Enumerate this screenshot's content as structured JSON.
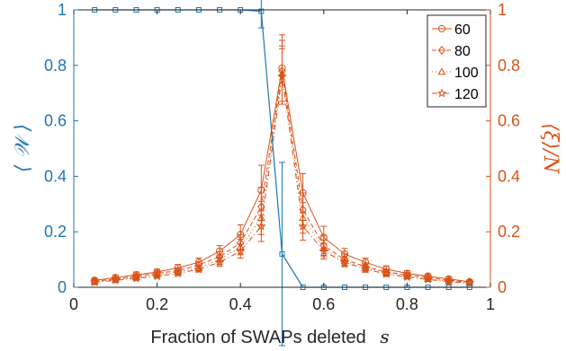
{
  "chart_data": {
    "type": "line",
    "xlabel": "Fraction of SWAPs deleted",
    "xlabel_symbol": "s",
    "ylabel_left": "⟨ 𝒲 ⟩",
    "ylabel_right": "⟨ξ⟩/N",
    "xlim": [
      0,
      1
    ],
    "ylim_left": [
      0,
      1
    ],
    "ylim_right": [
      0,
      1
    ],
    "xticks": [
      "0",
      "0.2",
      "0.4",
      "0.6",
      "0.8",
      "1"
    ],
    "yticks_left": [
      "0",
      "0.2",
      "0.4",
      "0.6",
      "0.8",
      "1"
    ],
    "yticks_right": [
      "0",
      "0.2",
      "0.4",
      "0.6",
      "0.8",
      "1"
    ],
    "legend_position": "top-right",
    "colors": {
      "left": "#1f77b4",
      "right": "#d95319"
    },
    "left_series": {
      "x": [
        0.05,
        0.1,
        0.15,
        0.2,
        0.25,
        0.3,
        0.35,
        0.4,
        0.45,
        0.5,
        0.55,
        0.6,
        0.65,
        0.7,
        0.75,
        0.8,
        0.85,
        0.9,
        0.95
      ],
      "y": [
        1,
        1,
        1,
        1,
        1,
        1,
        1,
        1,
        0.995,
        0.12,
        0,
        0,
        0,
        0,
        0,
        0,
        0,
        0,
        0
      ],
      "err": [
        0,
        0,
        0,
        0,
        0,
        0,
        0,
        0,
        0.06,
        0.33,
        0,
        0,
        0,
        0,
        0,
        0,
        0,
        0,
        0
      ]
    },
    "right_series": [
      {
        "name": "60",
        "marker": "circle",
        "dash": "",
        "x": [
          0.05,
          0.1,
          0.15,
          0.2,
          0.25,
          0.3,
          0.35,
          0.4,
          0.45,
          0.5,
          0.55,
          0.6,
          0.65,
          0.7,
          0.75,
          0.8,
          0.85,
          0.9,
          0.95
        ],
        "y": [
          0.025,
          0.035,
          0.045,
          0.055,
          0.07,
          0.09,
          0.13,
          0.19,
          0.35,
          0.79,
          0.34,
          0.18,
          0.12,
          0.09,
          0.065,
          0.05,
          0.04,
          0.03,
          0.02
        ],
        "err": [
          0.008,
          0.008,
          0.01,
          0.01,
          0.012,
          0.015,
          0.02,
          0.035,
          0.09,
          0.12,
          0.07,
          0.04,
          0.02,
          0.015,
          0.012,
          0.01,
          0.008,
          0.008,
          0.006
        ]
      },
      {
        "name": "80",
        "marker": "diamond",
        "dash": "5,3",
        "x": [
          0.05,
          0.1,
          0.15,
          0.2,
          0.25,
          0.3,
          0.35,
          0.4,
          0.45,
          0.5,
          0.55,
          0.6,
          0.65,
          0.7,
          0.75,
          0.8,
          0.85,
          0.9,
          0.95
        ],
        "y": [
          0.022,
          0.03,
          0.04,
          0.05,
          0.06,
          0.08,
          0.11,
          0.16,
          0.29,
          0.78,
          0.28,
          0.15,
          0.1,
          0.075,
          0.055,
          0.045,
          0.035,
          0.025,
          0.018
        ],
        "err": [
          0.007,
          0.007,
          0.008,
          0.009,
          0.01,
          0.012,
          0.018,
          0.03,
          0.07,
          0.11,
          0.06,
          0.035,
          0.02,
          0.012,
          0.01,
          0.008,
          0.007,
          0.006,
          0.005
        ]
      },
      {
        "name": "100",
        "marker": "triangle",
        "dash": "1,3",
        "x": [
          0.05,
          0.1,
          0.15,
          0.2,
          0.25,
          0.3,
          0.35,
          0.4,
          0.45,
          0.5,
          0.55,
          0.6,
          0.65,
          0.7,
          0.75,
          0.8,
          0.85,
          0.9,
          0.95
        ],
        "y": [
          0.02,
          0.028,
          0.036,
          0.045,
          0.055,
          0.07,
          0.1,
          0.145,
          0.25,
          0.77,
          0.25,
          0.14,
          0.095,
          0.07,
          0.052,
          0.04,
          0.03,
          0.022,
          0.016
        ],
        "err": [
          0.006,
          0.006,
          0.007,
          0.008,
          0.009,
          0.011,
          0.016,
          0.028,
          0.06,
          0.1,
          0.055,
          0.03,
          0.018,
          0.012,
          0.01,
          0.008,
          0.006,
          0.006,
          0.005
        ]
      },
      {
        "name": "120",
        "marker": "star",
        "dash": "6,3,1,3",
        "x": [
          0.05,
          0.1,
          0.15,
          0.2,
          0.25,
          0.3,
          0.35,
          0.4,
          0.45,
          0.5,
          0.55,
          0.6,
          0.65,
          0.7,
          0.75,
          0.8,
          0.85,
          0.9,
          0.95
        ],
        "y": [
          0.018,
          0.025,
          0.032,
          0.04,
          0.05,
          0.065,
          0.09,
          0.13,
          0.22,
          0.76,
          0.22,
          0.13,
          0.09,
          0.065,
          0.048,
          0.037,
          0.028,
          0.02,
          0.015
        ],
        "err": [
          0.006,
          0.006,
          0.007,
          0.007,
          0.008,
          0.01,
          0.015,
          0.025,
          0.055,
          0.1,
          0.05,
          0.028,
          0.016,
          0.011,
          0.009,
          0.007,
          0.006,
          0.005,
          0.005
        ]
      }
    ]
  }
}
